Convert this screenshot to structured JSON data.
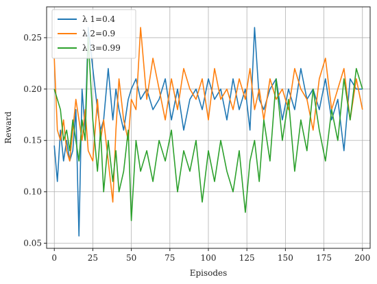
{
  "chart_data": {
    "type": "line",
    "title": "",
    "xlabel": "Episodes",
    "ylabel": "Reward",
    "xlim": [
      -5,
      205
    ],
    "ylim": [
      0.045,
      0.28
    ],
    "xticks": [
      0,
      25,
      50,
      75,
      100,
      125,
      150,
      175,
      200
    ],
    "yticks": [
      0.05,
      0.1,
      0.15,
      0.2,
      0.25
    ],
    "ytick_labels": [
      "0.05",
      "0.10",
      "0.15",
      "0.20",
      "0.25"
    ],
    "grid": true,
    "legend_position": "top-left",
    "series": [
      {
        "name": "λ 1=0.4",
        "color": "#1f77b4",
        "x": [
          0,
          2,
          4,
          6,
          8,
          10,
          12,
          14,
          16,
          18,
          20,
          22,
          25,
          28,
          30,
          32,
          35,
          38,
          40,
          42,
          45,
          48,
          50,
          53,
          56,
          60,
          64,
          68,
          72,
          76,
          80,
          84,
          88,
          92,
          96,
          100,
          104,
          108,
          112,
          116,
          120,
          124,
          127,
          130,
          133,
          136,
          140,
          144,
          148,
          152,
          156,
          160,
          164,
          168,
          172,
          176,
          180,
          184,
          188,
          192,
          196,
          200
        ],
        "values": [
          0.145,
          0.11,
          0.16,
          0.13,
          0.15,
          0.13,
          0.14,
          0.18,
          0.057,
          0.2,
          0.16,
          0.26,
          0.22,
          0.18,
          0.16,
          0.17,
          0.22,
          0.17,
          0.2,
          0.18,
          0.16,
          0.19,
          0.2,
          0.21,
          0.19,
          0.2,
          0.18,
          0.19,
          0.21,
          0.17,
          0.2,
          0.16,
          0.19,
          0.2,
          0.18,
          0.21,
          0.19,
          0.2,
          0.17,
          0.21,
          0.18,
          0.2,
          0.16,
          0.26,
          0.19,
          0.18,
          0.2,
          0.21,
          0.17,
          0.2,
          0.18,
          0.22,
          0.19,
          0.2,
          0.18,
          0.21,
          0.17,
          0.19,
          0.14,
          0.21,
          0.2,
          0.2
        ]
      },
      {
        "name": "λ 2=0.9",
        "color": "#ff7f0e",
        "x": [
          0,
          2,
          4,
          6,
          8,
          10,
          12,
          14,
          16,
          18,
          20,
          22,
          25,
          28,
          30,
          32,
          35,
          38,
          40,
          42,
          45,
          48,
          50,
          53,
          56,
          60,
          64,
          68,
          72,
          76,
          80,
          84,
          88,
          92,
          96,
          100,
          104,
          108,
          112,
          116,
          120,
          124,
          127,
          130,
          133,
          136,
          140,
          144,
          148,
          152,
          156,
          160,
          164,
          168,
          172,
          176,
          180,
          184,
          188,
          192,
          196,
          200
        ],
        "values": [
          0.23,
          0.16,
          0.15,
          0.17,
          0.14,
          0.13,
          0.16,
          0.19,
          0.17,
          0.15,
          0.18,
          0.14,
          0.13,
          0.19,
          0.15,
          0.17,
          0.13,
          0.09,
          0.16,
          0.21,
          0.17,
          0.15,
          0.19,
          0.18,
          0.26,
          0.19,
          0.23,
          0.2,
          0.17,
          0.21,
          0.18,
          0.22,
          0.2,
          0.19,
          0.21,
          0.17,
          0.22,
          0.19,
          0.2,
          0.18,
          0.21,
          0.19,
          0.22,
          0.18,
          0.2,
          0.17,
          0.21,
          0.19,
          0.2,
          0.18,
          0.22,
          0.2,
          0.19,
          0.16,
          0.21,
          0.23,
          0.18,
          0.2,
          0.22,
          0.17,
          0.21,
          0.18
        ]
      },
      {
        "name": "λ 3=0.99",
        "color": "#2ca02c",
        "x": [
          0,
          2,
          4,
          6,
          8,
          10,
          12,
          14,
          16,
          18,
          20,
          22,
          25,
          28,
          30,
          32,
          35,
          38,
          40,
          42,
          45,
          48,
          50,
          53,
          56,
          60,
          64,
          68,
          72,
          76,
          80,
          84,
          88,
          92,
          96,
          100,
          104,
          108,
          112,
          116,
          120,
          124,
          127,
          130,
          133,
          136,
          140,
          144,
          148,
          152,
          156,
          160,
          164,
          168,
          172,
          176,
          180,
          184,
          188,
          192,
          196,
          200
        ],
        "values": [
          0.2,
          0.19,
          0.18,
          0.15,
          0.16,
          0.14,
          0.17,
          0.15,
          0.13,
          0.17,
          0.15,
          0.25,
          0.17,
          0.12,
          0.16,
          0.1,
          0.15,
          0.11,
          0.14,
          0.1,
          0.12,
          0.16,
          0.072,
          0.15,
          0.12,
          0.14,
          0.11,
          0.15,
          0.13,
          0.16,
          0.1,
          0.14,
          0.12,
          0.15,
          0.09,
          0.14,
          0.11,
          0.15,
          0.12,
          0.1,
          0.14,
          0.08,
          0.13,
          0.15,
          0.11,
          0.17,
          0.13,
          0.21,
          0.15,
          0.19,
          0.12,
          0.17,
          0.14,
          0.2,
          0.16,
          0.13,
          0.18,
          0.15,
          0.21,
          0.17,
          0.22,
          0.2
        ]
      }
    ]
  }
}
